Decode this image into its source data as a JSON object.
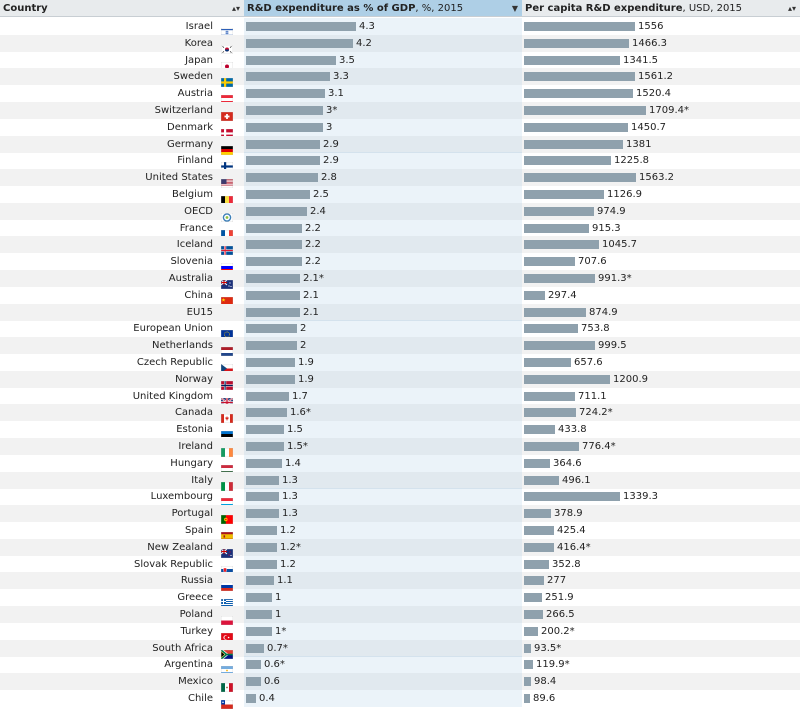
{
  "header": {
    "country_label": "Country",
    "gdp_label_bold": "R&D expenditure as % of GDP",
    "gdp_label_rest": ", %, 2015",
    "pc_label_bold": "Per capita R&D expenditure",
    "pc_label_rest": ", USD, 2015",
    "sort_icon": "sort-arrows-icon",
    "sorted_desc_icon": "sort-desc-icon"
  },
  "colors": {
    "bar": "#8fa1ad",
    "active_header": "#aecfe6",
    "header": "#e8ebed",
    "stripe": "#f2f2f2"
  },
  "scales": {
    "gdp_max": 4.3,
    "pc_max": 1709.4
  },
  "rows": [
    {
      "country": "Israel",
      "flag": "IL",
      "gdp": 4.3,
      "gdp_label": "4.3",
      "pc": 1556,
      "pc_label": "1556"
    },
    {
      "country": "Korea",
      "flag": "KR",
      "gdp": 4.2,
      "gdp_label": "4.2",
      "pc": 1466.3,
      "pc_label": "1466.3"
    },
    {
      "country": "Japan",
      "flag": "JP",
      "gdp": 3.5,
      "gdp_label": "3.5",
      "pc": 1341.5,
      "pc_label": "1341.5"
    },
    {
      "country": "Sweden",
      "flag": "SE",
      "gdp": 3.3,
      "gdp_label": "3.3",
      "pc": 1561.2,
      "pc_label": "1561.2"
    },
    {
      "country": "Austria",
      "flag": "AT",
      "gdp": 3.1,
      "gdp_label": "3.1",
      "pc": 1520.4,
      "pc_label": "1520.4"
    },
    {
      "country": "Switzerland",
      "flag": "CH",
      "gdp": 3.0,
      "gdp_label": "3*",
      "pc": 1709.4,
      "pc_label": "1709.4*"
    },
    {
      "country": "Denmark",
      "flag": "DK",
      "gdp": 3.0,
      "gdp_label": "3",
      "pc": 1450.7,
      "pc_label": "1450.7"
    },
    {
      "country": "Germany",
      "flag": "DE",
      "gdp": 2.9,
      "gdp_label": "2.9",
      "pc": 1381,
      "pc_label": "1381"
    },
    {
      "country": "Finland",
      "flag": "FI",
      "gdp": 2.9,
      "gdp_label": "2.9",
      "pc": 1225.8,
      "pc_label": "1225.8"
    },
    {
      "country": "United States",
      "flag": "US",
      "gdp": 2.8,
      "gdp_label": "2.8",
      "pc": 1563.2,
      "pc_label": "1563.2"
    },
    {
      "country": "Belgium",
      "flag": "BE",
      "gdp": 2.5,
      "gdp_label": "2.5",
      "pc": 1126.9,
      "pc_label": "1126.9"
    },
    {
      "country": "OECD",
      "flag": "OECD",
      "gdp": 2.4,
      "gdp_label": "2.4",
      "pc": 974.9,
      "pc_label": "974.9"
    },
    {
      "country": "France",
      "flag": "FR",
      "gdp": 2.2,
      "gdp_label": "2.2",
      "pc": 915.3,
      "pc_label": "915.3"
    },
    {
      "country": "Iceland",
      "flag": "IS",
      "gdp": 2.2,
      "gdp_label": "2.2",
      "pc": 1045.7,
      "pc_label": "1045.7"
    },
    {
      "country": "Slovenia",
      "flag": "SI",
      "gdp": 2.2,
      "gdp_label": "2.2",
      "pc": 707.6,
      "pc_label": "707.6"
    },
    {
      "country": "Australia",
      "flag": "AU",
      "gdp": 2.1,
      "gdp_label": "2.1*",
      "pc": 991.3,
      "pc_label": "991.3*"
    },
    {
      "country": "China",
      "flag": "CN",
      "gdp": 2.1,
      "gdp_label": "2.1",
      "pc": 297.4,
      "pc_label": "297.4"
    },
    {
      "country": "EU15",
      "flag": "",
      "gdp": 2.1,
      "gdp_label": "2.1",
      "pc": 874.9,
      "pc_label": "874.9"
    },
    {
      "country": "European Union",
      "flag": "EU",
      "gdp": 2.0,
      "gdp_label": "2",
      "pc": 753.8,
      "pc_label": "753.8"
    },
    {
      "country": "Netherlands",
      "flag": "NL",
      "gdp": 2.0,
      "gdp_label": "2",
      "pc": 999.5,
      "pc_label": "999.5"
    },
    {
      "country": "Czech Republic",
      "flag": "CZ",
      "gdp": 1.9,
      "gdp_label": "1.9",
      "pc": 657.6,
      "pc_label": "657.6"
    },
    {
      "country": "Norway",
      "flag": "NO",
      "gdp": 1.9,
      "gdp_label": "1.9",
      "pc": 1200.9,
      "pc_label": "1200.9"
    },
    {
      "country": "United Kingdom",
      "flag": "GB",
      "gdp": 1.7,
      "gdp_label": "1.7",
      "pc": 711.1,
      "pc_label": "711.1"
    },
    {
      "country": "Canada",
      "flag": "CA",
      "gdp": 1.6,
      "gdp_label": "1.6*",
      "pc": 724.2,
      "pc_label": "724.2*"
    },
    {
      "country": "Estonia",
      "flag": "EE",
      "gdp": 1.5,
      "gdp_label": "1.5",
      "pc": 433.8,
      "pc_label": "433.8"
    },
    {
      "country": "Ireland",
      "flag": "IE",
      "gdp": 1.5,
      "gdp_label": "1.5*",
      "pc": 776.4,
      "pc_label": "776.4*"
    },
    {
      "country": "Hungary",
      "flag": "HU",
      "gdp": 1.4,
      "gdp_label": "1.4",
      "pc": 364.6,
      "pc_label": "364.6"
    },
    {
      "country": "Italy",
      "flag": "IT",
      "gdp": 1.3,
      "gdp_label": "1.3",
      "pc": 496.1,
      "pc_label": "496.1"
    },
    {
      "country": "Luxembourg",
      "flag": "LU",
      "gdp": 1.3,
      "gdp_label": "1.3",
      "pc": 1339.3,
      "pc_label": "1339.3"
    },
    {
      "country": "Portugal",
      "flag": "PT",
      "gdp": 1.3,
      "gdp_label": "1.3",
      "pc": 378.9,
      "pc_label": "378.9"
    },
    {
      "country": "Spain",
      "flag": "ES",
      "gdp": 1.2,
      "gdp_label": "1.2",
      "pc": 425.4,
      "pc_label": "425.4"
    },
    {
      "country": "New Zealand",
      "flag": "NZ",
      "gdp": 1.2,
      "gdp_label": "1.2*",
      "pc": 416.4,
      "pc_label": "416.4*"
    },
    {
      "country": "Slovak Republic",
      "flag": "SK",
      "gdp": 1.2,
      "gdp_label": "1.2",
      "pc": 352.8,
      "pc_label": "352.8"
    },
    {
      "country": "Russia",
      "flag": "RU",
      "gdp": 1.1,
      "gdp_label": "1.1",
      "pc": 277,
      "pc_label": "277"
    },
    {
      "country": "Greece",
      "flag": "GR",
      "gdp": 1.0,
      "gdp_label": "1",
      "pc": 251.9,
      "pc_label": "251.9"
    },
    {
      "country": "Poland",
      "flag": "PL",
      "gdp": 1.0,
      "gdp_label": "1",
      "pc": 266.5,
      "pc_label": "266.5"
    },
    {
      "country": "Turkey",
      "flag": "TR",
      "gdp": 1.0,
      "gdp_label": "1*",
      "pc": 200.2,
      "pc_label": "200.2*"
    },
    {
      "country": "South Africa",
      "flag": "ZA",
      "gdp": 0.7,
      "gdp_label": "0.7*",
      "pc": 93.5,
      "pc_label": "93.5*"
    },
    {
      "country": "Argentina",
      "flag": "AR",
      "gdp": 0.6,
      "gdp_label": "0.6*",
      "pc": 119.9,
      "pc_label": "119.9*"
    },
    {
      "country": "Mexico",
      "flag": "MX",
      "gdp": 0.6,
      "gdp_label": "0.6",
      "pc": 98.4,
      "pc_label": "98.4"
    },
    {
      "country": "Chile",
      "flag": "CL",
      "gdp": 0.4,
      "gdp_label": "0.4",
      "pc": 89.6,
      "pc_label": "89.6"
    }
  ]
}
